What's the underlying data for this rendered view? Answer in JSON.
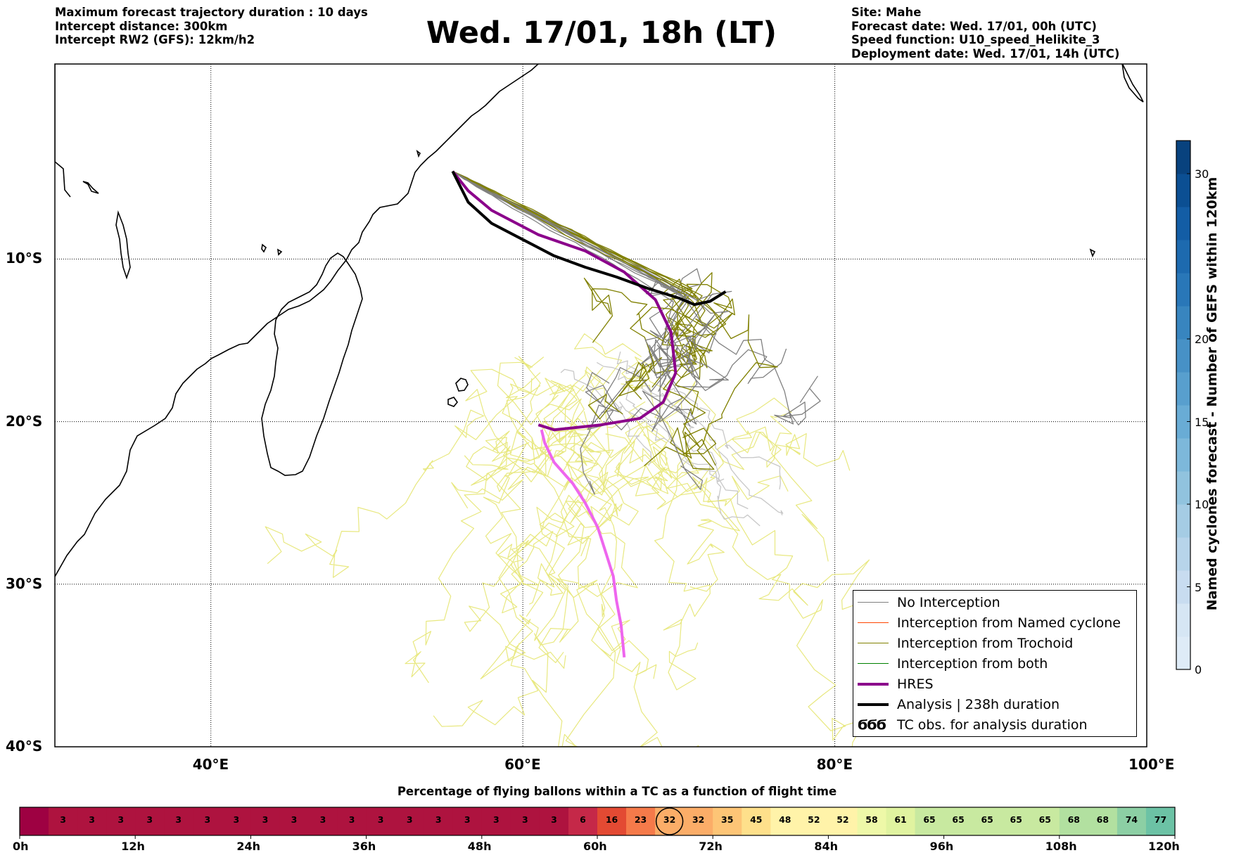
{
  "header": {
    "left_lines": [
      "Maximum forecast trajectory duration : 10 days",
      "Intercept distance: 300km",
      "Intercept RW2 (GFS):  12km/h2"
    ],
    "title": "Wed. 17/01, 18h (LT)",
    "right_lines": [
      "Site: Mahe",
      "Forecast date: Wed. 17/01, 00h (UTC)",
      "Speed function: U10_speed_Helikite_3",
      "Deployment date: Wed. 17/01, 14h (UTC)"
    ]
  },
  "map": {
    "extent": {
      "lon": [
        30,
        100
      ],
      "lat": [
        -40,
        2
      ]
    },
    "lat_gridlines": [
      -10,
      -20,
      -30
    ],
    "lat_labels": [
      {
        "lat": -10,
        "text": "10°S"
      },
      {
        "lat": -20,
        "text": "20°S"
      },
      {
        "lat": -30,
        "text": "30°S"
      },
      {
        "lat": -40,
        "text": "40°S"
      }
    ],
    "lon_gridlines": [
      40,
      60,
      80
    ],
    "lon_labels": [
      {
        "lon": 40,
        "text": "40°E"
      },
      {
        "lon": 60,
        "text": "60°E"
      },
      {
        "lon": 80,
        "text": "80°E"
      },
      {
        "lon": 100,
        "text": "100°E"
      }
    ],
    "colors": {
      "no_interception": "#808080",
      "named_cyclone": "#ff4500",
      "trochoid": "#808000",
      "both": "#008000",
      "hres": "#8b008b",
      "analysis": "#000000",
      "light_gray": "#c8c8c8",
      "yellow": "#e8e880",
      "magenta": "#ee66ee"
    },
    "launch_site": {
      "lon": 55.5,
      "lat": -4.6
    }
  },
  "legend": {
    "items": [
      {
        "label": "No Interception",
        "color": "#808080",
        "style": "thin"
      },
      {
        "label": "Interception from Named cyclone",
        "color": "#ff4500",
        "style": "thin"
      },
      {
        "label": "Interception from Trochoid",
        "color": "#808000",
        "style": "thin"
      },
      {
        "label": "Interception from both",
        "color": "#008000",
        "style": "thin"
      },
      {
        "label": "HRES",
        "color": "#8b008b",
        "style": "thick"
      },
      {
        "label": "Analysis | 238h duration",
        "color": "#000000",
        "style": "thick"
      },
      {
        "label": "TC obs. for analysis duration",
        "color": "#000000",
        "style": "symbol"
      }
    ],
    "symbol_text": "ϬϬϬ"
  },
  "colorbar": {
    "label": "Named cyclones forecast - Number of GEFS within 120km",
    "ticks": [
      {
        "value": 0,
        "text": "0"
      },
      {
        "value": 5,
        "text": "5"
      },
      {
        "value": 10,
        "text": "10"
      },
      {
        "value": 15,
        "text": "15"
      },
      {
        "value": 20,
        "text": "20"
      },
      {
        "value": 30,
        "text": "30"
      }
    ],
    "range": [
      0,
      32
    ]
  },
  "timeline": {
    "title": "Percentage of flying ballons within a TC as a function of flight time",
    "values": [
      null,
      3,
      3,
      3,
      3,
      3,
      3,
      3,
      3,
      3,
      3,
      3,
      3,
      3,
      3,
      3,
      3,
      3,
      3,
      6,
      16,
      23,
      32,
      32,
      35,
      45,
      48,
      52,
      52,
      58,
      61,
      65,
      65,
      65,
      65,
      65,
      68,
      68,
      74,
      77
    ],
    "highlighted_index": 22,
    "time_labels": [
      "0h",
      "12h",
      "24h",
      "36h",
      "48h",
      "60h",
      "72h",
      "84h",
      "96h",
      "108h",
      "120h"
    ]
  }
}
